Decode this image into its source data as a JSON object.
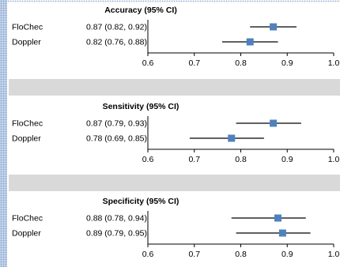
{
  "chart_data": {
    "type": "scatter",
    "style": "forest-plot",
    "colors": {
      "marker": "#4f81bd",
      "line": "#000000",
      "band": "#d9d9d9",
      "edge": "#c9d8ec"
    },
    "panels": [
      {
        "title": "Accuracy (95% CI)",
        "rows": [
          {
            "label": "FloChec",
            "estimate_text": "0.87 (0.82, 0.92)",
            "estimate": 0.87,
            "lower": 0.82,
            "upper": 0.92
          },
          {
            "label": "Doppler",
            "estimate_text": "0.82 (0.76, 0.88)",
            "estimate": 0.82,
            "lower": 0.76,
            "upper": 0.88
          }
        ],
        "xlim": [
          0.6,
          1.0
        ],
        "ticks": [
          "0.6",
          "0.7",
          "0.8",
          "0.9",
          "1.0"
        ]
      },
      {
        "title": "Sensitivity (95% CI)",
        "rows": [
          {
            "label": "FloChec",
            "estimate_text": "0.87 (0.79, 0.93)",
            "estimate": 0.87,
            "lower": 0.79,
            "upper": 0.93
          },
          {
            "label": "Doppler",
            "estimate_text": "0.78 (0.69, 0.85)",
            "estimate": 0.78,
            "lower": 0.69,
            "upper": 0.85
          }
        ],
        "xlim": [
          0.6,
          1.0
        ],
        "ticks": [
          "0.6",
          "0.7",
          "0.8",
          "0.9",
          "1.0"
        ]
      },
      {
        "title": "Specificity (95% CI)",
        "rows": [
          {
            "label": "FloChec",
            "estimate_text": "0.88 (0.78, 0.94)",
            "estimate": 0.88,
            "lower": 0.78,
            "upper": 0.94
          },
          {
            "label": "Doppler",
            "estimate_text": "0.89 (0.79, 0.95)",
            "estimate": 0.89,
            "lower": 0.79,
            "upper": 0.95
          }
        ],
        "xlim": [
          0.6,
          1.0
        ],
        "ticks": [
          "0.6",
          "0.7",
          "0.8",
          "0.9",
          "1.0"
        ]
      }
    ]
  }
}
